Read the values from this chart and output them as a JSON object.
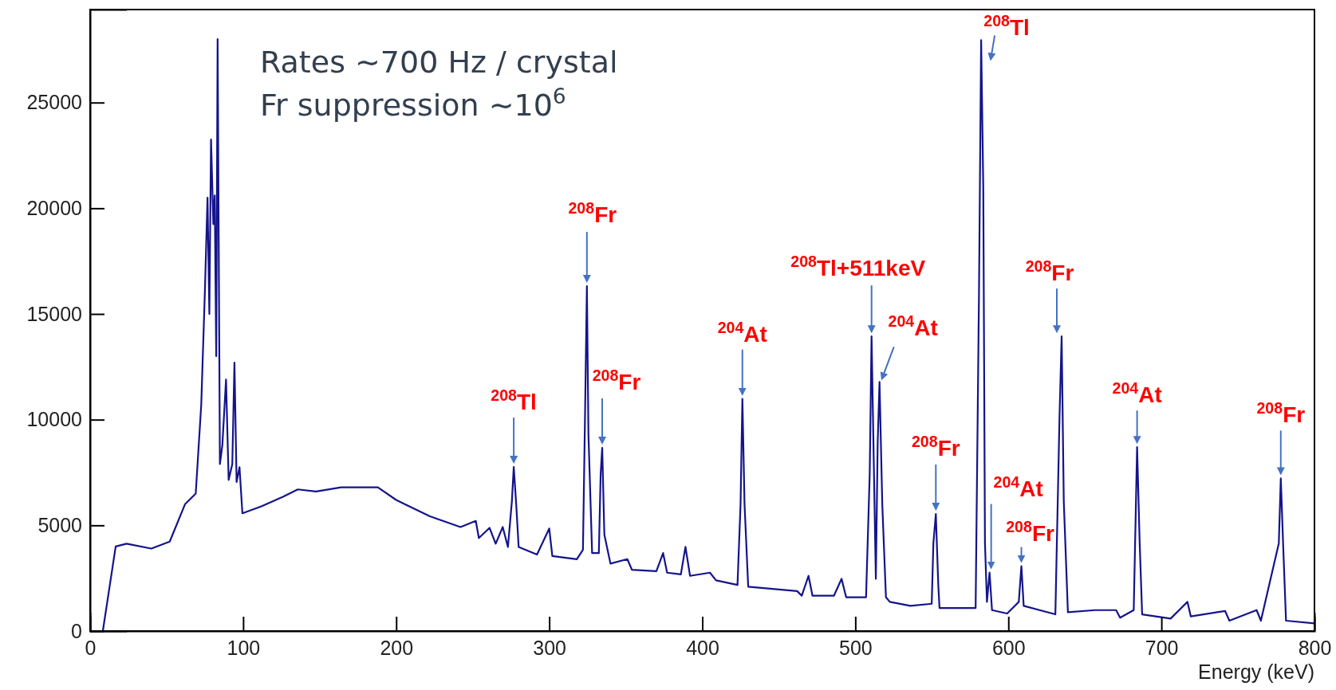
{
  "chart_data": {
    "type": "line",
    "xlabel": "Energy (keV)",
    "grid": false,
    "legend": false,
    "marker": "none",
    "line_style": "solid",
    "xlim": [
      0,
      800
    ],
    "ylim": [
      0,
      29400
    ],
    "xticks": [
      0,
      100,
      200,
      300,
      400,
      500,
      600,
      700,
      800
    ],
    "yticks": [
      0,
      5000,
      10000,
      15000,
      20000,
      25000
    ],
    "series": [
      {
        "color": "#14148c",
        "x": [
          0,
          8.3,
          16.7,
          23.8,
          40,
          52,
          62,
          69,
          72.6,
          75,
          76.7,
          77.9,
          79,
          80.5,
          81.4,
          82.4,
          83.3,
          84.8,
          86.4,
          88.8,
          90.5,
          92.9,
          94.3,
          95.7,
          97.6,
          99.5,
          111.9,
          126,
          135.7,
          147.6,
          164,
          188,
          200,
          222,
          242,
          252,
          254,
          261,
          265,
          269.6,
          273,
          275.6,
          276.8,
          278.4,
          280,
          292,
          300,
          302,
          318,
          322,
          323.4,
          324.6,
          325.6,
          328,
          332.4,
          333.6,
          334.6,
          336,
          340,
          351,
          354,
          370,
          374.4,
          377,
          386,
          389,
          392,
          405,
          409,
          423,
          425,
          426.2,
          427.6,
          430,
          462,
          465,
          469.4,
          472,
          486,
          491,
          494,
          507,
          509.4,
          510.6,
          512,
          513.4,
          514.6,
          515.8,
          517.6,
          520,
          522.5,
          536,
          549.9,
          551,
          552.6,
          554.2,
          555,
          578.6,
          580.8,
          582.2,
          583.6,
          584.7,
          586,
          587.7,
          589.3,
          599.2,
          606.8,
          608.5,
          610,
          630.7,
          633.4,
          634.8,
          636.2,
          638.9,
          656.7,
          670.4,
          673,
          681.9,
          684.1,
          685.8,
          687.4,
          706,
          717,
          719.2,
          741.6,
          744.4,
          762.2,
          765,
          776.7,
          778,
          779.5,
          781.4,
          800
        ],
        "values": [
          0,
          0,
          4000,
          4130,
          3900,
          4230,
          6000,
          6500,
          10700,
          16100,
          20500,
          15000,
          23250,
          19250,
          20600,
          13000,
          28000,
          7900,
          8800,
          11900,
          7150,
          7900,
          12700,
          7050,
          7750,
          5570,
          5900,
          6350,
          6700,
          6600,
          6800,
          6800,
          6200,
          5430,
          4920,
          5210,
          4400,
          4880,
          4130,
          4920,
          3980,
          6150,
          7760,
          6000,
          3980,
          3620,
          4850,
          3550,
          3400,
          3840,
          10300,
          16320,
          9320,
          3690,
          3690,
          7450,
          8670,
          4560,
          3190,
          3400,
          2900,
          2830,
          3690,
          2760,
          2680,
          3980,
          2610,
          2760,
          2400,
          2180,
          6000,
          10980,
          6000,
          2100,
          1890,
          1670,
          2610,
          1670,
          1670,
          2470,
          1600,
          1600,
          7450,
          13940,
          8170,
          2470,
          8890,
          11780,
          6000,
          1600,
          1380,
          1190,
          1290,
          4150,
          5540,
          2180,
          1090,
          1090,
          16000,
          27950,
          20970,
          4150,
          1380,
          2770,
          990,
          830,
          1380,
          3070,
          1190,
          790,
          10090,
          13940,
          6130,
          890,
          990,
          990,
          630,
          990,
          8700,
          4150,
          790,
          590,
          1380,
          690,
          950,
          490,
          990,
          490,
          4150,
          7220,
          4150,
          490,
          360
        ]
      }
    ],
    "annotations": [
      "Rates ∼700 Hz / crystal",
      "Fr suppression ∼10$^{6}$",
      {
        "text": "$^{208}$Tl",
        "x": 276.8,
        "y": 7760
      },
      {
        "text": "$^{208}$Fr",
        "x": 324.6,
        "y": 16320
      },
      {
        "text": "$^{208}$Fr",
        "x": 334.6,
        "y": 8670
      },
      {
        "text": "$^{204}$At",
        "x": 426.2,
        "y": 10980
      },
      {
        "text": "$^{208}$Tl+511keV",
        "x": 510.6,
        "y": 13940
      },
      {
        "text": "$^{204}$At",
        "x": 515.8,
        "y": 11780
      },
      {
        "text": "$^{208}$Tl",
        "x": 582.2,
        "y": 27950
      },
      {
        "text": "$^{208}$Fr",
        "x": 552.6,
        "y": 5540
      },
      {
        "text": "$^{204}$At",
        "x": 587.7,
        "y": 2770
      },
      {
        "text": "$^{208}$Fr",
        "x": 608.5,
        "y": 3070
      },
      {
        "text": "$^{208}$Fr",
        "x": 634.8,
        "y": 13940
      },
      {
        "text": "$^{204}$At",
        "x": 684.1,
        "y": 8700
      },
      {
        "text": "$^{208}$Fr",
        "x": 778,
        "y": 7220
      }
    ]
  }
}
